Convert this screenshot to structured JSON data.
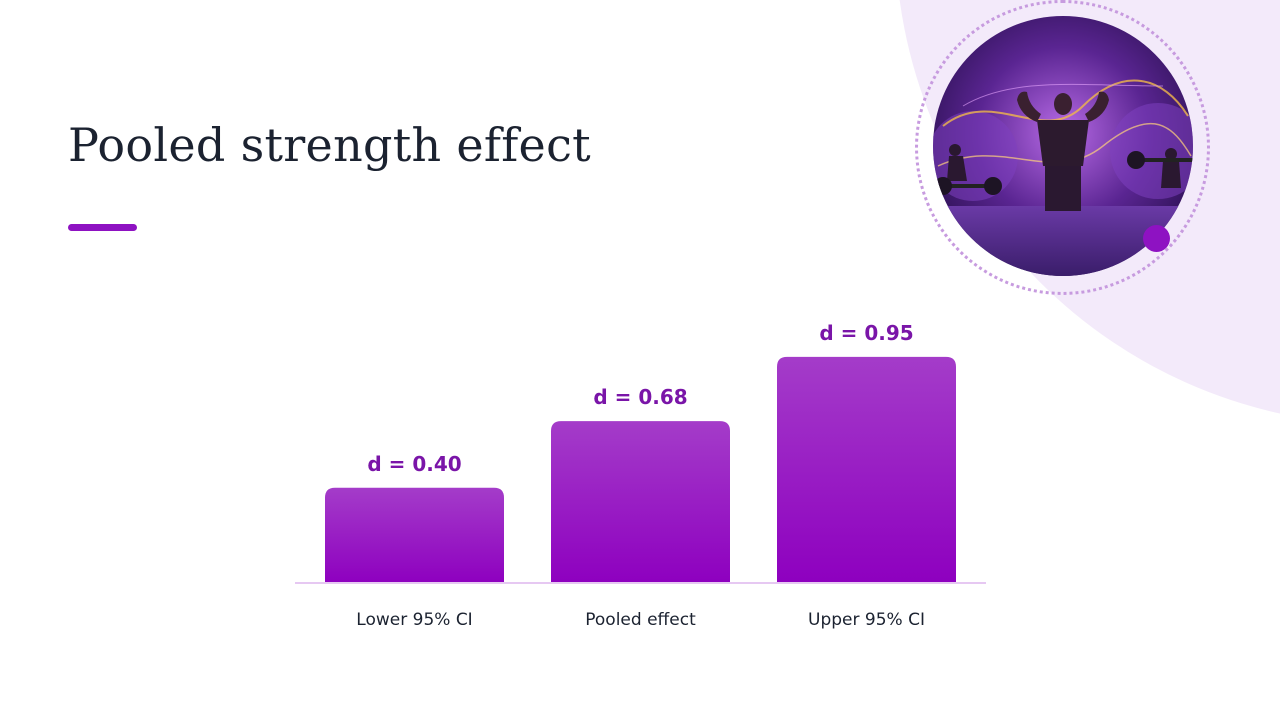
{
  "slide": {
    "title": "Pooled strength effect"
  },
  "decor": {
    "photo_icon": "strength-training-photo",
    "accent_color": "#8e12c2",
    "blob_color": "#f3eafa"
  },
  "chart_data": {
    "type": "bar",
    "categories": [
      "Lower 95% CI",
      "Pooled effect",
      "Upper 95% CI"
    ],
    "values": [
      0.4,
      0.68,
      0.95
    ],
    "data_labels": [
      "d = 0.40",
      "d = 0.68",
      "d = 0.95"
    ],
    "title": "",
    "xlabel": "",
    "ylabel": "",
    "ylim": [
      0,
      1.0
    ],
    "grid": false,
    "legend": "none",
    "bar_color_top": "#a43cc9",
    "bar_color_bottom": "#8e00bf",
    "label_color": "#7a15a8",
    "baseline_color": "#e6c8f2"
  }
}
